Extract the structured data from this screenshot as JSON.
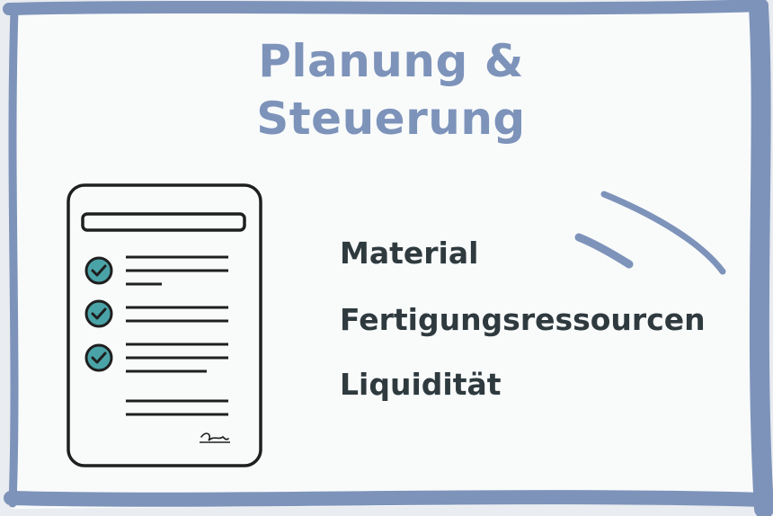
{
  "title": {
    "line1": "Planung &",
    "line2": "Steuerung"
  },
  "items": [
    {
      "label": "Material"
    },
    {
      "label": "Fertigungsressourcen"
    },
    {
      "label": "Liquidität"
    }
  ],
  "colors": {
    "frame": "#7d93ba",
    "title": "#7d93ba",
    "text": "#2f3a3f",
    "check_fill": "#4aa3a7",
    "paper": "#f9fbfb"
  },
  "icons": {
    "document": "checklist-document-icon",
    "check": "checkmark-circle-icon",
    "signature": "signature-icon"
  }
}
